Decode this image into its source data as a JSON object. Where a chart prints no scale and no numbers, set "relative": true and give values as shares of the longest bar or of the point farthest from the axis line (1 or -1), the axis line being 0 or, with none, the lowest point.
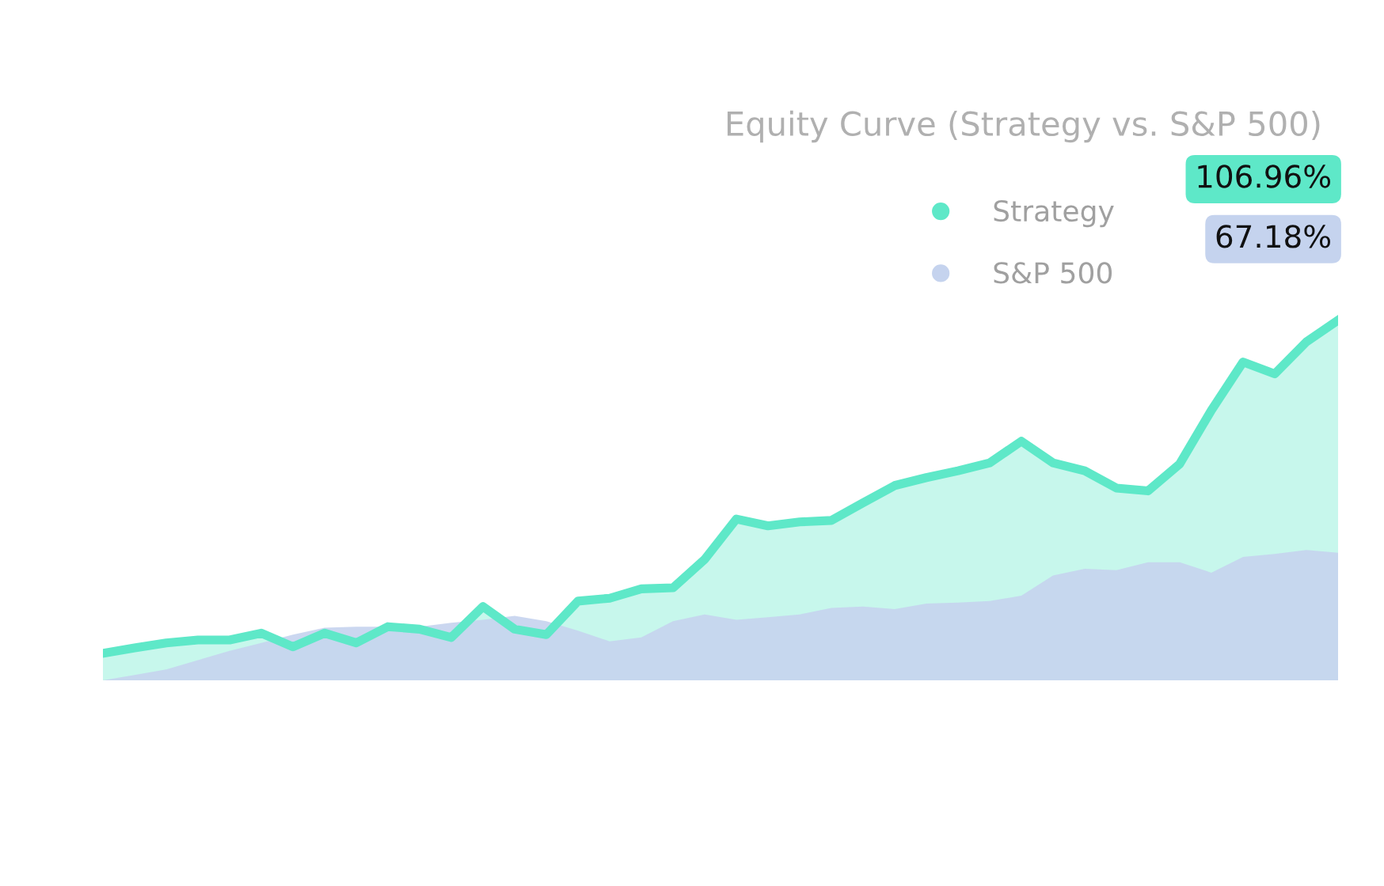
{
  "chart_data": {
    "type": "area",
    "title": "Equity Curve (Strategy vs. S&P 500)",
    "relative": true,
    "legend": "top right",
    "grid": false,
    "categories": [
      null,
      null,
      null,
      null,
      null,
      null,
      null,
      null,
      null,
      null,
      null,
      null,
      null,
      null,
      null,
      null,
      null,
      null,
      null,
      null,
      null,
      null,
      null,
      null,
      null,
      null,
      null,
      null,
      null,
      null,
      null,
      null,
      null,
      null,
      null,
      null,
      null,
      null,
      null,
      null
    ],
    "annotations": [
      "106.96%",
      "67.18%"
    ],
    "series": [
      {
        "name": "Strategy",
        "color": "#5ee8c8",
        "values": [
          0.075,
          0.09,
          0.104,
          0.112,
          0.112,
          0.131,
          0.093,
          0.131,
          0.104,
          0.149,
          0.142,
          0.119,
          0.205,
          0.142,
          0.127,
          0.22,
          0.228,
          0.254,
          0.257,
          0.336,
          0.448,
          0.429,
          0.44,
          0.444,
          0.493,
          0.541,
          0.563,
          0.582,
          0.604,
          0.664,
          0.604,
          0.582,
          0.534,
          0.526,
          0.601,
          0.75,
          0.884,
          0.851,
          0.94,
          1
        ]
      },
      {
        "name": "S&P 500",
        "color": "#c5d3ee",
        "values": [
          0,
          0.015,
          0.03,
          0.056,
          0.082,
          0.104,
          0.127,
          0.146,
          0.149,
          0.149,
          0.149,
          0.16,
          0.168,
          0.179,
          0.164,
          0.138,
          0.108,
          0.119,
          0.164,
          0.183,
          0.168,
          0.175,
          0.183,
          0.201,
          0.205,
          0.198,
          0.213,
          0.216,
          0.22,
          0.235,
          0.291,
          0.31,
          0.306,
          0.328,
          0.328,
          0.299,
          0.343,
          0.351,
          0.362,
          0.354
        ]
      }
    ]
  }
}
